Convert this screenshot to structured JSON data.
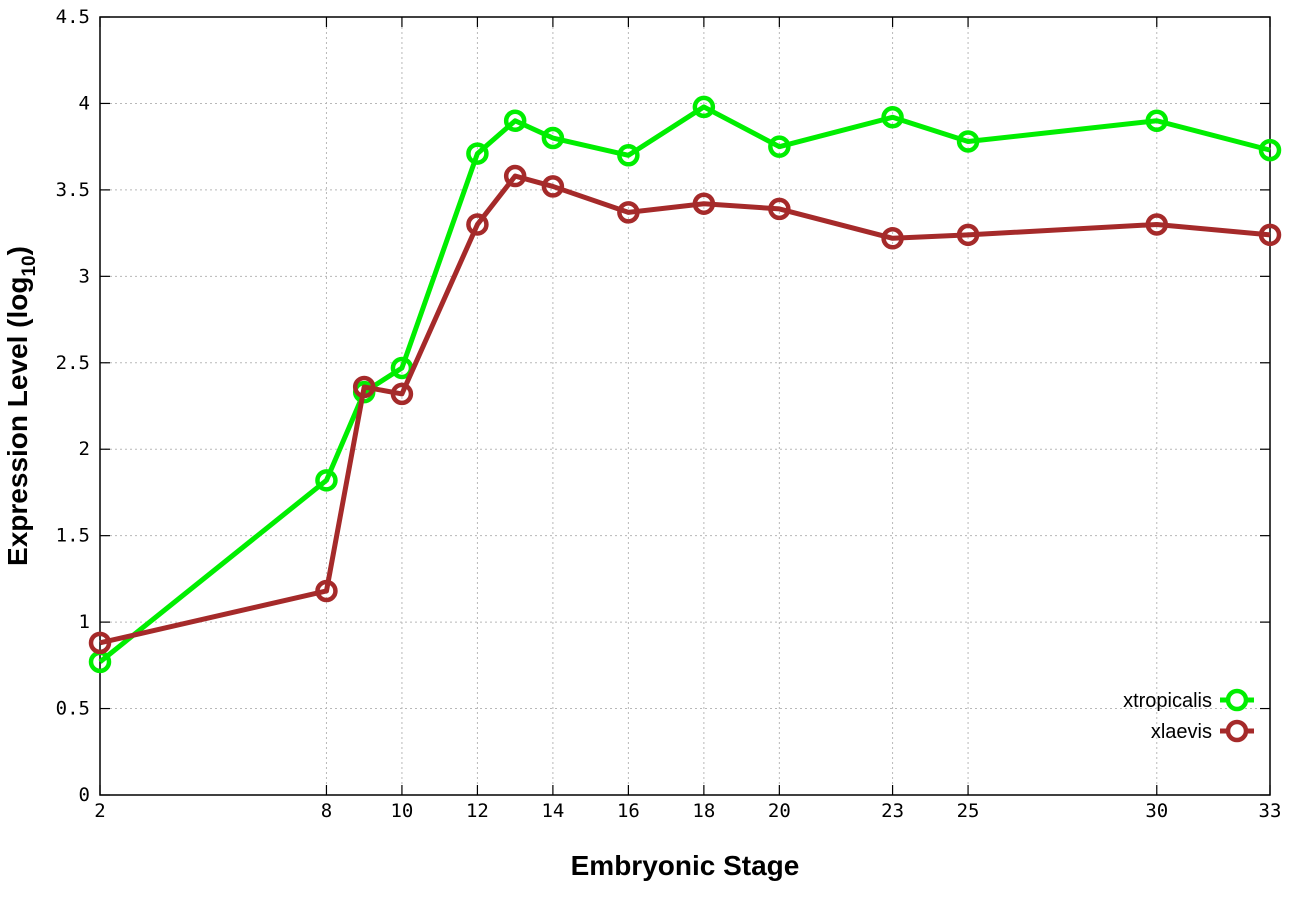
{
  "chart_data": {
    "type": "line",
    "xlabel": "Embryonic Stage",
    "ylabel_main": "Expression Level (log",
    "ylabel_sub": "10",
    "ylabel_close": ")",
    "xlim": [
      2,
      33
    ],
    "ylim": [
      0,
      4.5
    ],
    "x_ticks": [
      2,
      8,
      10,
      12,
      14,
      16,
      18,
      20,
      23,
      25,
      30,
      33
    ],
    "x_tick_labels": [
      "2",
      "8",
      "10",
      "12",
      "14",
      "16",
      "18",
      "20",
      "23",
      "25",
      "30",
      "33"
    ],
    "y_ticks": [
      0,
      0.5,
      1,
      1.5,
      2,
      2.5,
      3,
      3.5,
      4,
      4.5
    ],
    "y_tick_labels": [
      "0",
      "0.5",
      "1",
      "1.5",
      "2",
      "2.5",
      "3",
      "3.5",
      "4",
      "4.5"
    ],
    "grid": true,
    "legend_position": "bottom-right",
    "x": [
      2,
      8,
      9,
      10,
      12,
      13,
      14,
      16,
      18,
      20,
      23,
      25,
      30,
      33
    ],
    "series": [
      {
        "name": "xtropicalis",
        "color": "#00ee00",
        "values": [
          0.77,
          1.82,
          2.33,
          2.47,
          3.71,
          3.9,
          3.8,
          3.7,
          3.98,
          3.75,
          3.92,
          3.78,
          3.9,
          3.73
        ]
      },
      {
        "name": "xlaevis",
        "color": "#a52a2a",
        "values": [
          0.88,
          1.18,
          2.36,
          2.32,
          3.3,
          3.58,
          3.52,
          3.37,
          3.42,
          3.39,
          3.22,
          3.24,
          3.3,
          3.24
        ]
      }
    ]
  }
}
